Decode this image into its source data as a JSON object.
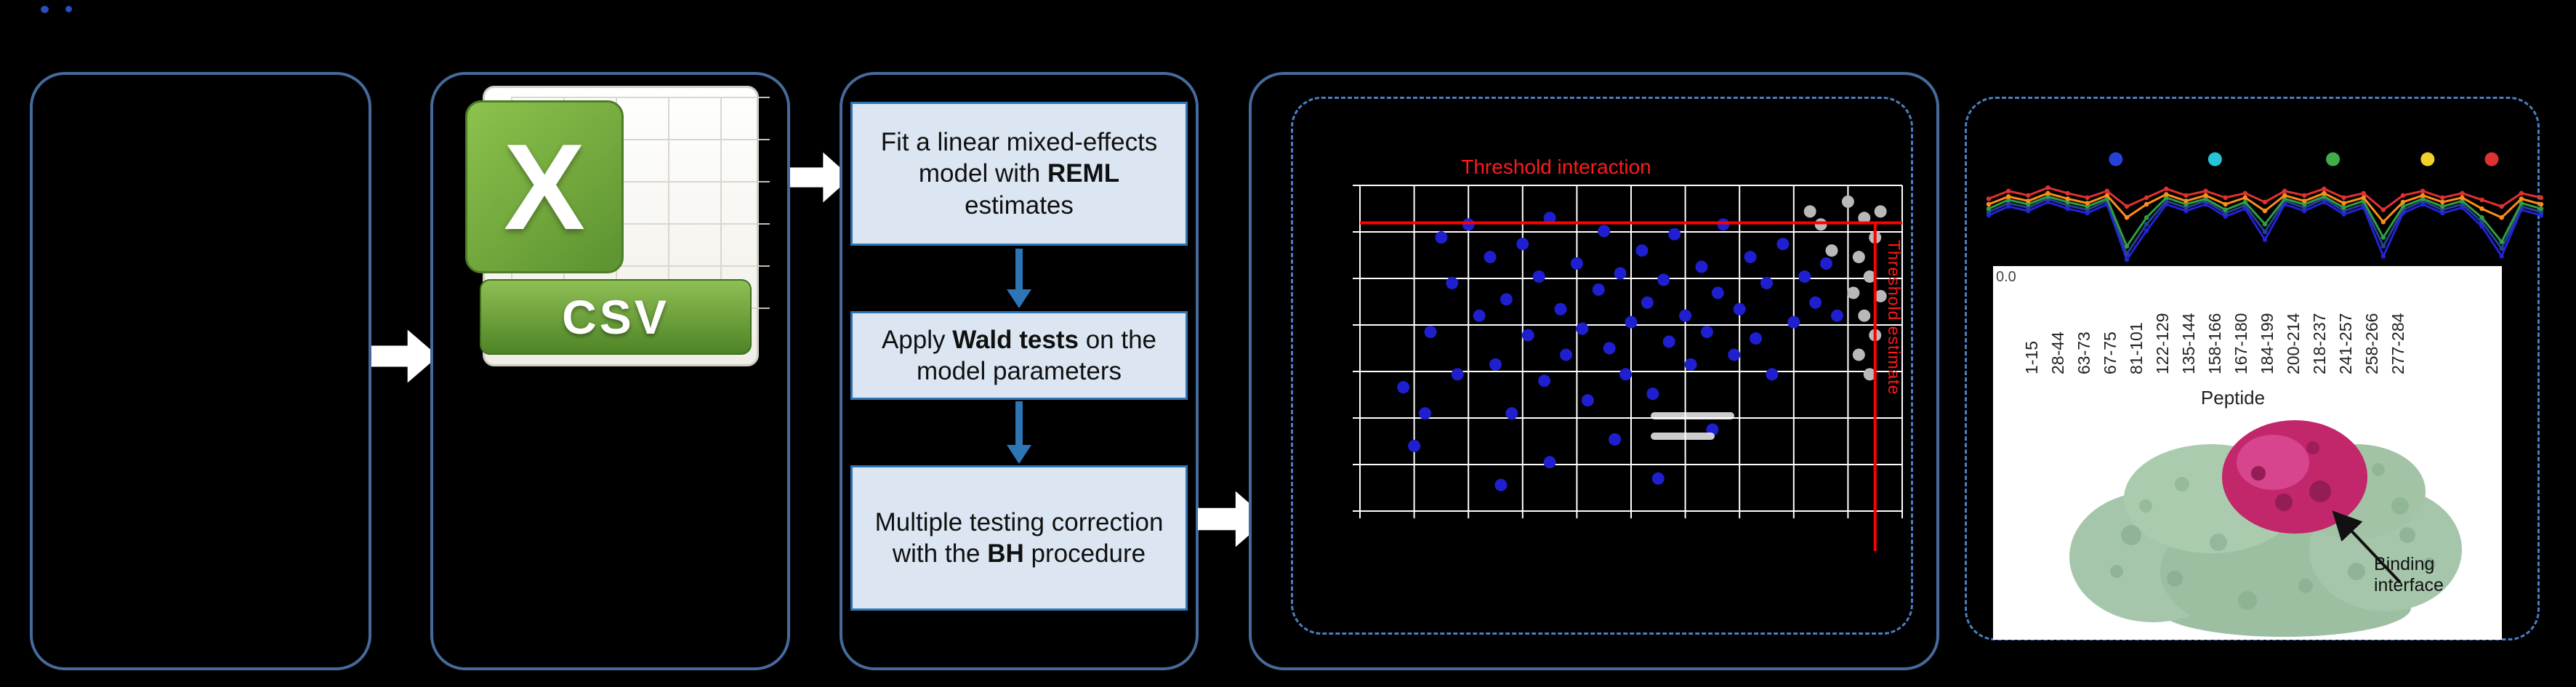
{
  "csv_icon": {
    "x_label": "X",
    "label": "CSV"
  },
  "steps": {
    "step1": {
      "pre": "Fit a linear mixed-effects model with ",
      "bold": "REML",
      "post": " estimates"
    },
    "step2": {
      "pre": "Apply ",
      "bold": "Wald tests",
      "post": " on the model parameters"
    },
    "step3": {
      "pre": "Multiple testing correction\nwith the ",
      "bold": "BH",
      "post": " procedure"
    }
  },
  "scatter": {
    "title": "Threshold interaction",
    "side_label": "Threshold estimate",
    "grid": {
      "cols": 10,
      "rows": 7
    },
    "threshold_y": 0.115,
    "threshold_x": 0.95,
    "colors": {
      "significant": "#1f1fd0",
      "nonsignificant": "#b9b9b9",
      "threshold": "#ff0000",
      "grid": "#ffffff"
    },
    "points_significant": [
      [
        0.08,
        0.62
      ],
      [
        0.1,
        0.8
      ],
      [
        0.13,
        0.45
      ],
      [
        0.15,
        0.16
      ],
      [
        0.17,
        0.3
      ],
      [
        0.18,
        0.58
      ],
      [
        0.2,
        0.12
      ],
      [
        0.22,
        0.4
      ],
      [
        0.24,
        0.22
      ],
      [
        0.25,
        0.55
      ],
      [
        0.27,
        0.35
      ],
      [
        0.28,
        0.7
      ],
      [
        0.3,
        0.18
      ],
      [
        0.31,
        0.46
      ],
      [
        0.33,
        0.28
      ],
      [
        0.34,
        0.6
      ],
      [
        0.35,
        0.1
      ],
      [
        0.37,
        0.38
      ],
      [
        0.38,
        0.52
      ],
      [
        0.4,
        0.24
      ],
      [
        0.41,
        0.44
      ],
      [
        0.42,
        0.66
      ],
      [
        0.44,
        0.32
      ],
      [
        0.45,
        0.14
      ],
      [
        0.46,
        0.5
      ],
      [
        0.48,
        0.27
      ],
      [
        0.49,
        0.58
      ],
      [
        0.5,
        0.42
      ],
      [
        0.52,
        0.2
      ],
      [
        0.53,
        0.36
      ],
      [
        0.54,
        0.64
      ],
      [
        0.56,
        0.29
      ],
      [
        0.57,
        0.48
      ],
      [
        0.58,
        0.15
      ],
      [
        0.6,
        0.4
      ],
      [
        0.61,
        0.55
      ],
      [
        0.63,
        0.25
      ],
      [
        0.64,
        0.45
      ],
      [
        0.66,
        0.33
      ],
      [
        0.67,
        0.12
      ],
      [
        0.69,
        0.52
      ],
      [
        0.7,
        0.38
      ],
      [
        0.72,
        0.22
      ],
      [
        0.73,
        0.47
      ],
      [
        0.75,
        0.3
      ],
      [
        0.76,
        0.58
      ],
      [
        0.78,
        0.18
      ],
      [
        0.8,
        0.42
      ],
      [
        0.82,
        0.28
      ],
      [
        0.84,
        0.36
      ],
      [
        0.26,
        0.92
      ],
      [
        0.35,
        0.85
      ],
      [
        0.55,
        0.9
      ],
      [
        0.12,
        0.7
      ],
      [
        0.65,
        0.75
      ],
      [
        0.47,
        0.78
      ],
      [
        0.86,
        0.24
      ],
      [
        0.88,
        0.4
      ]
    ],
    "points_other": [
      [
        0.9,
        0.05
      ],
      [
        0.93,
        0.1
      ],
      [
        0.95,
        0.16
      ],
      [
        0.92,
        0.22
      ],
      [
        0.94,
        0.28
      ],
      [
        0.96,
        0.34
      ],
      [
        0.93,
        0.4
      ],
      [
        0.95,
        0.46
      ],
      [
        0.92,
        0.52
      ],
      [
        0.94,
        0.58
      ],
      [
        0.85,
        0.12
      ],
      [
        0.87,
        0.2
      ],
      [
        0.83,
        0.08
      ],
      [
        0.96,
        0.08
      ],
      [
        0.91,
        0.33
      ]
    ]
  },
  "profile": {
    "dot_row": [
      {
        "color": "#2741d8",
        "x": 0.237
      },
      {
        "color": "#27c4d8",
        "x": 0.412
      },
      {
        "color": "#3fae4a",
        "x": 0.62
      },
      {
        "color": "#f2d02a",
        "x": 0.787
      },
      {
        "color": "#e03131",
        "x": 0.9
      }
    ],
    "series": [
      {
        "color": "#2222dd",
        "values": [
          0.6,
          0.52,
          0.56,
          0.48,
          0.54,
          0.58,
          0.5,
          1.0,
          0.74,
          0.5,
          0.56,
          0.5,
          0.61,
          0.54,
          0.82,
          0.5,
          0.56,
          0.48,
          0.59,
          0.53,
          0.97,
          0.58,
          0.5,
          0.58,
          0.53,
          0.7,
          0.97,
          0.55,
          0.6
        ]
      },
      {
        "color": "#27418f",
        "values": [
          0.57,
          0.49,
          0.53,
          0.45,
          0.51,
          0.55,
          0.47,
          0.95,
          0.68,
          0.47,
          0.53,
          0.47,
          0.58,
          0.51,
          0.75,
          0.47,
          0.53,
          0.45,
          0.56,
          0.5,
          0.88,
          0.55,
          0.47,
          0.55,
          0.5,
          0.66,
          0.9,
          0.52,
          0.57
        ]
      },
      {
        "color": "#2f9e44",
        "values": [
          0.54,
          0.46,
          0.5,
          0.43,
          0.48,
          0.52,
          0.45,
          0.88,
          0.62,
          0.44,
          0.5,
          0.45,
          0.55,
          0.48,
          0.68,
          0.45,
          0.5,
          0.43,
          0.53,
          0.47,
          0.8,
          0.52,
          0.45,
          0.52,
          0.47,
          0.62,
          0.84,
          0.49,
          0.54
        ]
      },
      {
        "color": "#ff8c1a",
        "values": [
          0.5,
          0.43,
          0.47,
          0.4,
          0.45,
          0.49,
          0.42,
          0.62,
          0.5,
          0.41,
          0.47,
          0.42,
          0.5,
          0.44,
          0.56,
          0.42,
          0.47,
          0.4,
          0.49,
          0.44,
          0.66,
          0.48,
          0.42,
          0.48,
          0.44,
          0.54,
          0.62,
          0.45,
          0.5
        ]
      },
      {
        "color": "#e03131",
        "values": [
          0.45,
          0.38,
          0.42,
          0.35,
          0.4,
          0.44,
          0.38,
          0.52,
          0.44,
          0.36,
          0.42,
          0.38,
          0.44,
          0.4,
          0.48,
          0.38,
          0.42,
          0.36,
          0.44,
          0.4,
          0.55,
          0.42,
          0.38,
          0.44,
          0.4,
          0.46,
          0.52,
          0.4,
          0.44
        ]
      }
    ]
  },
  "peptide_axis": {
    "ytick": "0.0",
    "labels": [
      "1-15",
      "28-44",
      "63-73",
      "67-75",
      "81-101",
      "122-129",
      "135-144",
      "158-166",
      "167-180",
      "184-199",
      "200-214",
      "218-237",
      "241-257",
      "258-266",
      "277-284"
    ],
    "axis_label": "Peptide"
  },
  "protein": {
    "annotation": "Binding\ninterface"
  }
}
